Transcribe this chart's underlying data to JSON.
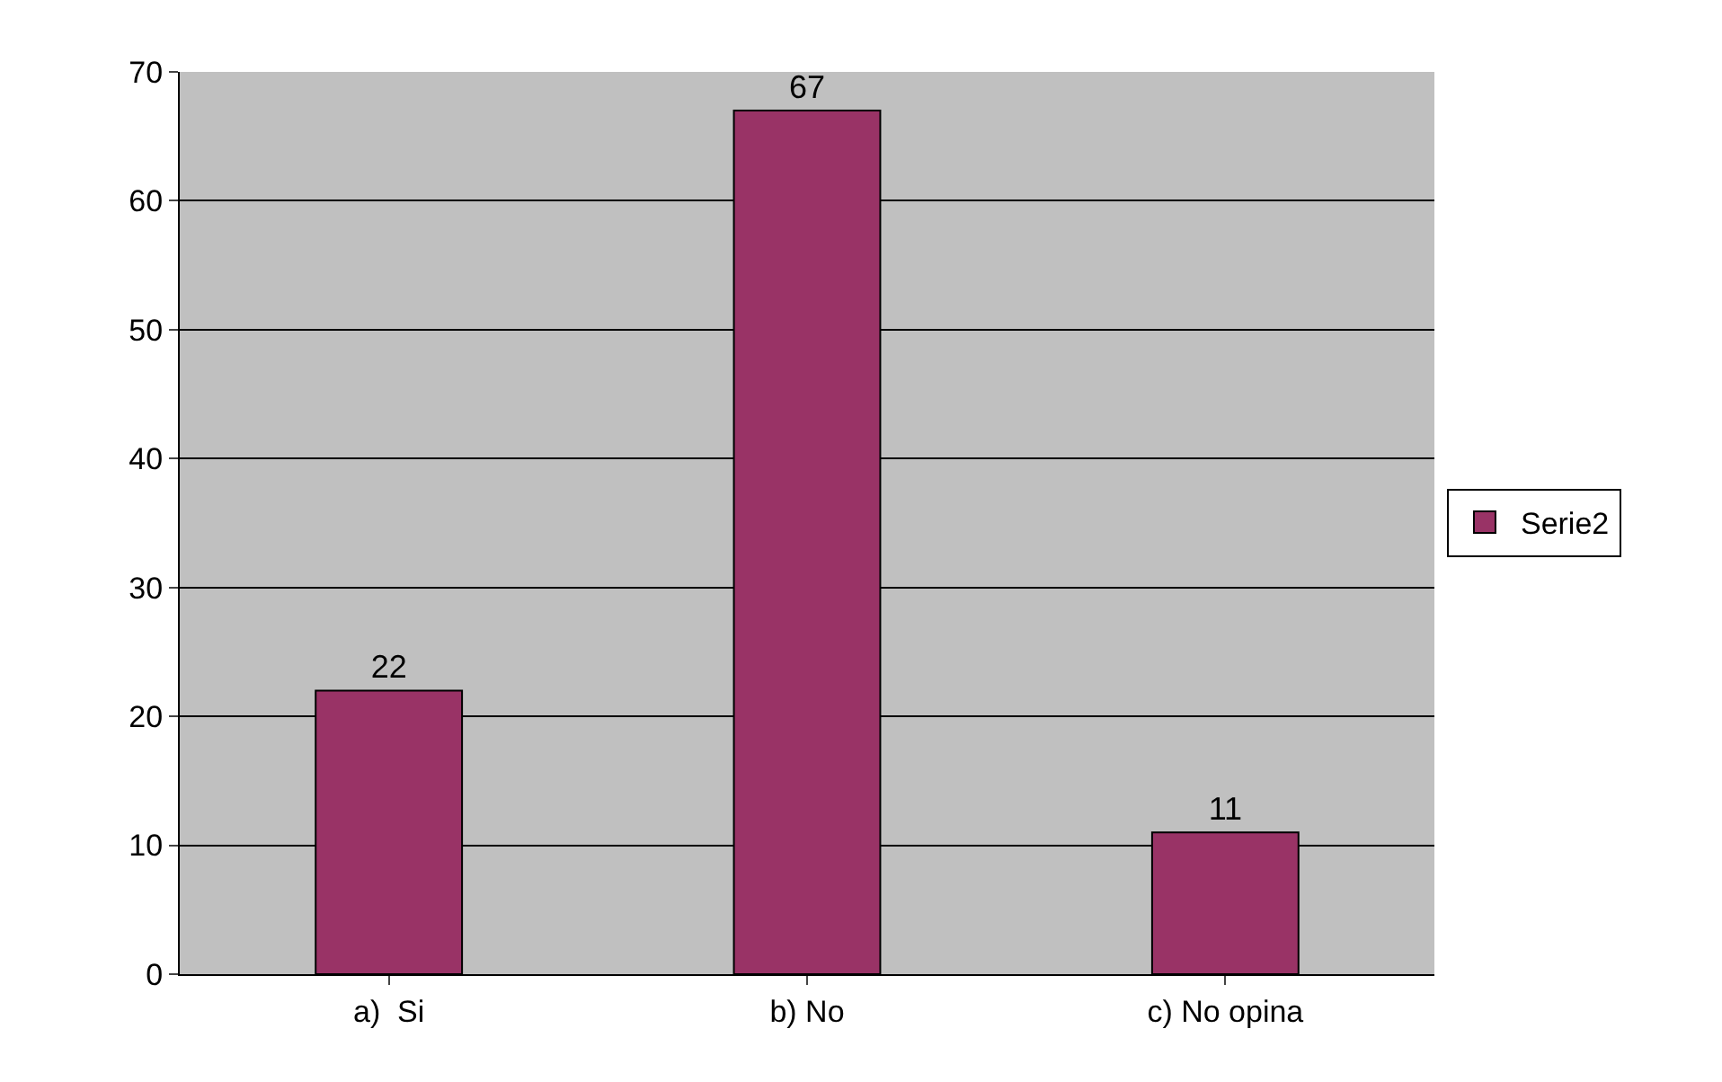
{
  "chart_data": {
    "type": "bar",
    "categories": [
      "a)  Si",
      "b) No",
      "c) No opina"
    ],
    "series": [
      {
        "name": "Serie2",
        "color": "#993366",
        "values": [
          22,
          67,
          11
        ]
      }
    ],
    "ylim": [
      0,
      70
    ],
    "yticks": [
      0,
      10,
      20,
      30,
      40,
      50,
      60,
      70
    ],
    "grid": "y",
    "legend": "right",
    "data_labels": true
  }
}
